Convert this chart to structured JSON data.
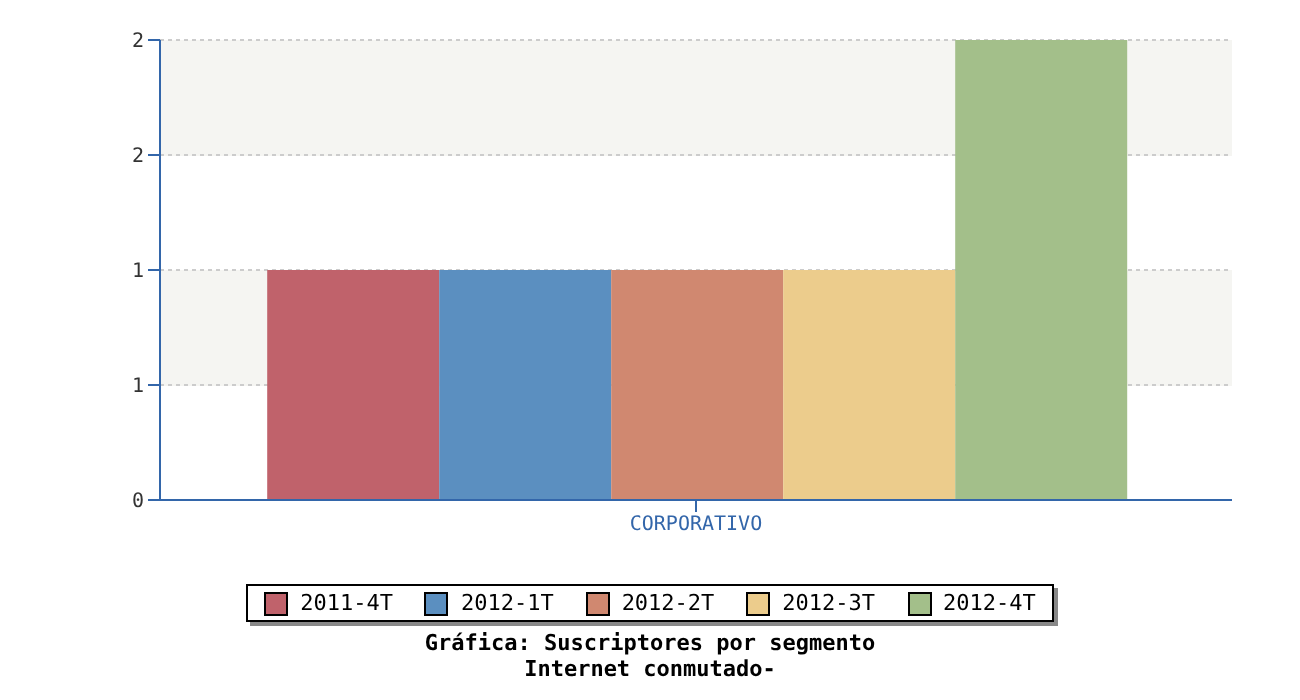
{
  "chart_data": {
    "type": "bar",
    "title": "Gráfica: Suscriptores por segmento",
    "subtitle": "Internet conmutado-",
    "categories": [
      "CORPORATIVO"
    ],
    "series": [
      {
        "name": "2011-4T",
        "color": "#c0626b",
        "values": [
          1
        ]
      },
      {
        "name": "2012-1T",
        "color": "#5b8fc0",
        "values": [
          1
        ]
      },
      {
        "name": "2012-2T",
        "color": "#d08870",
        "values": [
          1
        ]
      },
      {
        "name": "2012-3T",
        "color": "#eccc8c",
        "values": [
          1
        ]
      },
      {
        "name": "2012-4T",
        "color": "#a3bf8a",
        "values": [
          2
        ]
      }
    ],
    "ylim": [
      0,
      2
    ],
    "yticks": [
      0,
      {
        "value": 0.5,
        "label": "1"
      },
      1,
      {
        "value": 1.5,
        "label": "2"
      },
      2
    ],
    "grid": "y",
    "legend": "bottom"
  }
}
